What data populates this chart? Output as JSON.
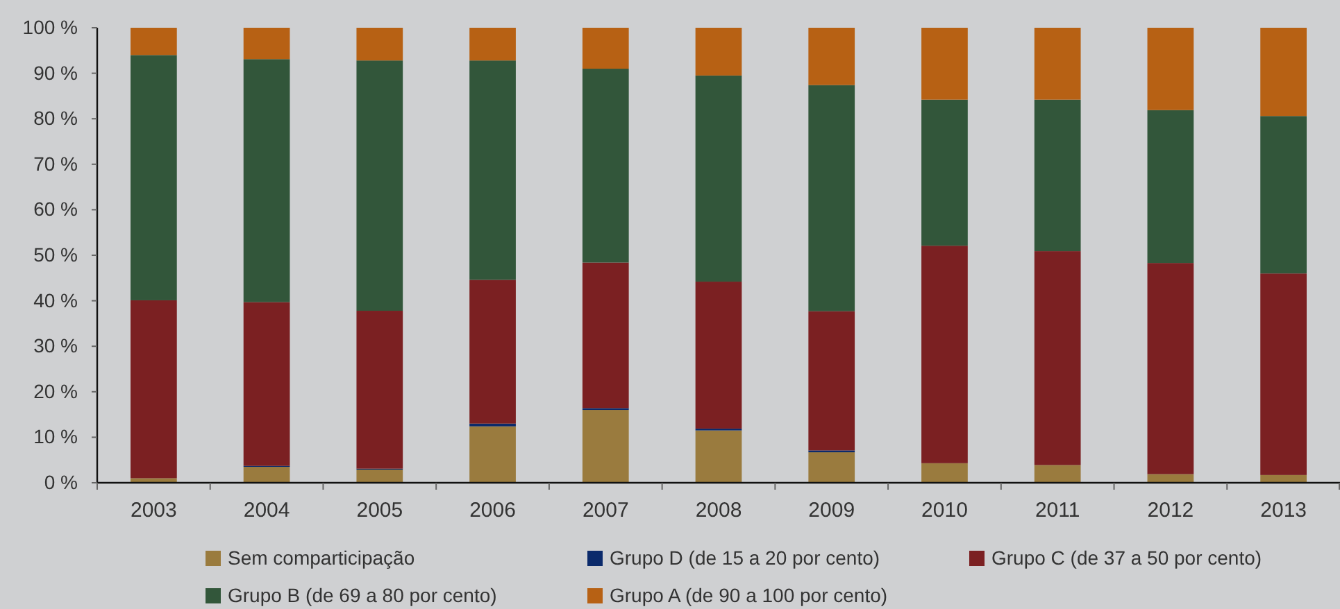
{
  "chart_data": {
    "type": "bar",
    "stacked": true,
    "legend": "bottom",
    "categories": [
      "2003",
      "2004",
      "2005",
      "2006",
      "2007",
      "2008",
      "2009",
      "2010",
      "2011",
      "2012",
      "2013"
    ],
    "ylim": [
      0,
      100
    ],
    "yticks": [
      {
        "value": 0,
        "label": "0 %"
      },
      {
        "value": 10,
        "label": "10 %"
      },
      {
        "value": 20,
        "label": "20 %"
      },
      {
        "value": 30,
        "label": "30 %"
      },
      {
        "value": 40,
        "label": "40 %"
      },
      {
        "value": 50,
        "label": "50 %"
      },
      {
        "value": 60,
        "label": "60 %"
      },
      {
        "value": 70,
        "label": "70 %"
      },
      {
        "value": 80,
        "label": "80 %"
      },
      {
        "value": 90,
        "label": "90 %"
      },
      {
        "value": 100,
        "label": "100 %"
      }
    ],
    "series": [
      {
        "name": "Sem comparticipação",
        "color": "#9a7b3e",
        "values": [
          1.0,
          3.5,
          2.9,
          12.4,
          16.0,
          11.5,
          6.7,
          4.3,
          3.9,
          1.9,
          1.7
        ]
      },
      {
        "name": "Grupo D (de 15 a 20 por cento)",
        "color": "#0b2a6b",
        "values": [
          0,
          0.2,
          0.2,
          0.6,
          0.4,
          0.4,
          0.4,
          0,
          0,
          0,
          0
        ]
      },
      {
        "name": "Grupo C (de 37 a 50 por cento)",
        "color": "#7b2022",
        "values": [
          39.1,
          36.0,
          34.7,
          31.6,
          32.0,
          32.3,
          30.6,
          47.8,
          47.0,
          46.4,
          44.3
        ]
      },
      {
        "name": "Grupo B (de 69 a 80 por cento)",
        "color": "#32563a",
        "values": [
          53.9,
          53.4,
          55.0,
          48.2,
          42.6,
          45.3,
          49.7,
          32.1,
          33.3,
          33.6,
          34.6
        ]
      },
      {
        "name": "Grupo A (de 90 a 100 por cento)",
        "color": "#b76114",
        "values": [
          6.0,
          6.9,
          7.2,
          7.2,
          9.0,
          10.5,
          12.6,
          15.8,
          15.8,
          18.1,
          19.4
        ]
      }
    ]
  }
}
